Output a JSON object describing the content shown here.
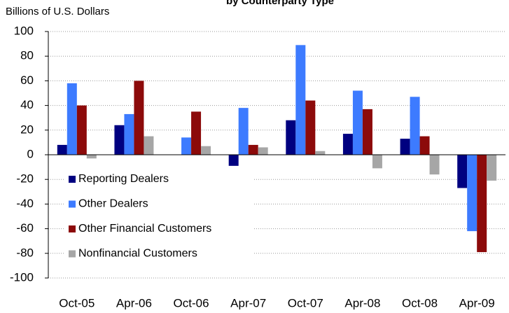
{
  "chart_data": {
    "type": "bar",
    "title": "by Counterparty Type",
    "y_label": "Billions of U.S. Dollars",
    "categories": [
      "Oct-05",
      "Apr-06",
      "Oct-06",
      "Apr-07",
      "Oct-07",
      "Apr-08",
      "Oct-08",
      "Apr-09"
    ],
    "series": [
      {
        "name": "Reporting Dealers",
        "color": "#000080",
        "values": [
          8,
          24,
          0,
          -9,
          28,
          17,
          13,
          -27
        ]
      },
      {
        "name": "Other Dealers",
        "color": "#3d7bff",
        "values": [
          58,
          33,
          14,
          38,
          89,
          52,
          47,
          -62
        ]
      },
      {
        "name": "Other Financial Customers",
        "color": "#8c0a0a",
        "values": [
          40,
          60,
          35,
          8,
          44,
          37,
          15,
          -79
        ]
      },
      {
        "name": "Nonfinancial Customers",
        "color": "#a6a6a6",
        "values": [
          -3,
          15,
          7,
          6,
          3,
          -11,
          -16,
          -21
        ]
      }
    ],
    "ylim": [
      -100,
      100
    ],
    "yticks": [
      -100,
      -80,
      -60,
      -40,
      -20,
      0,
      20,
      40,
      60,
      80,
      100
    ],
    "grid": true,
    "legend": "lower left"
  }
}
